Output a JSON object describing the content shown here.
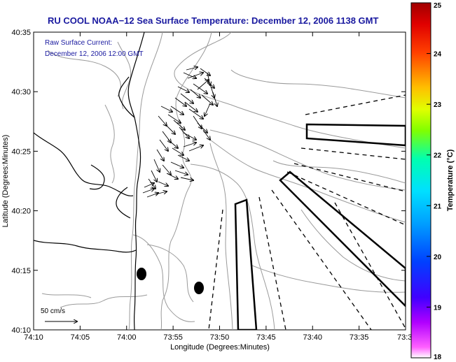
{
  "title": "RU COOL  NOAA−12  Sea Surface Temperature:  December 12, 2006 1138 GMT",
  "annotation": {
    "line1": "Raw Surface Current:",
    "line2": "December 12, 2006 12:00 GMT"
  },
  "scale_label": "50 cm/s",
  "axes": {
    "x_label": "Longitude (Degrees:Minutes)",
    "y_label": "Latitude (Degrees:Minutes)",
    "x_ticks": [
      "74:10",
      "74:05",
      "74:00",
      "73:55",
      "73:50",
      "73:45",
      "73:40",
      "73:35",
      "73:3"
    ],
    "y_ticks": [
      "40:35",
      "40:30",
      "40:25",
      "40:20",
      "40:15",
      "40:10"
    ]
  },
  "colorbar": {
    "label": "Temperature (°C)",
    "min": 18,
    "max": 25,
    "ticks": [
      "25",
      "24",
      "23",
      "22",
      "21",
      "20",
      "19",
      "18"
    ]
  },
  "colors": {
    "title": "#1a1aa0",
    "annotation": "#1a1aa0",
    "frame": "#000000",
    "contour": "#9a9a9a",
    "coast": "#000000"
  },
  "features": {
    "coastline": "coastline",
    "depth_contours": "bathymetry-contours",
    "current_vectors": "surface-current-vectors",
    "shipping_lanes": "shipping-lane-boxes",
    "dashed_lines": "dashed-boundary-lines",
    "markers": "buoy-markers"
  }
}
